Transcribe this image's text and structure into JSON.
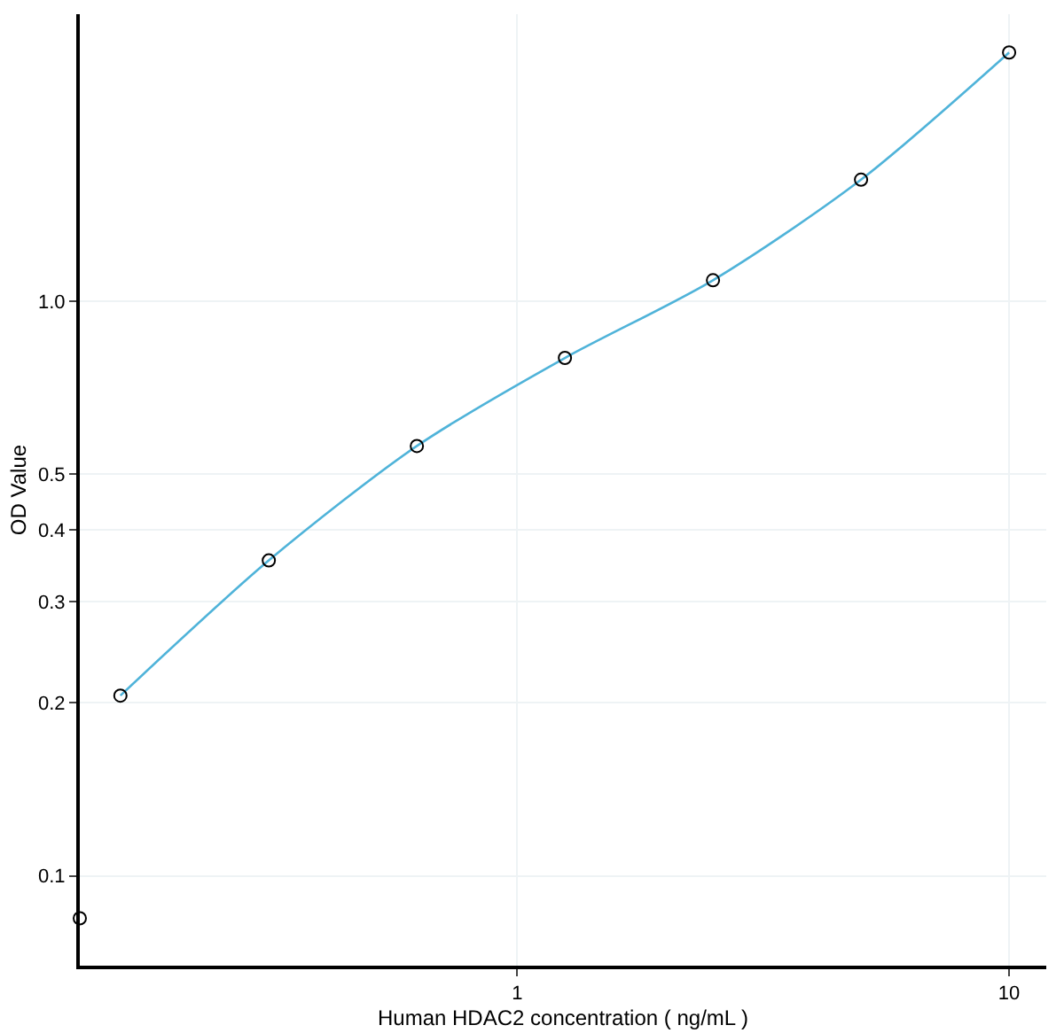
{
  "chart_data": {
    "type": "scatter",
    "xlabel": "Human HDAC2 concentration ( ng/mL )",
    "ylabel": "OD Value",
    "log": "xy",
    "xlim": [
      0.129,
      11.9
    ],
    "ylim": [
      0.0698,
      3.16
    ],
    "xticks": [
      1,
      10
    ],
    "yticks": [
      0.1,
      0.2,
      0.3,
      0.4,
      0.5,
      {
        "value": 1,
        "label": "1.0"
      }
    ],
    "grid": true,
    "marker": "circle",
    "line_style": "solid",
    "series": [
      {
        "type": "line",
        "marker": "none",
        "color": "#4fb3d9",
        "x": [
          0.156,
          0.3125,
          0.625,
          1.25,
          2.5,
          5,
          10
        ],
        "values": [
          0.206,
          0.354,
          0.56,
          0.797,
          1.088,
          1.628,
          2.71
        ]
      },
      {
        "color": "#000000",
        "x": [
          0.129,
          0.156,
          0.3125,
          0.625,
          1.25,
          2.5,
          5,
          10
        ],
        "values": [
          0.0844,
          0.206,
          0.354,
          0.56,
          0.797,
          1.088,
          1.628,
          2.71
        ]
      }
    ]
  }
}
